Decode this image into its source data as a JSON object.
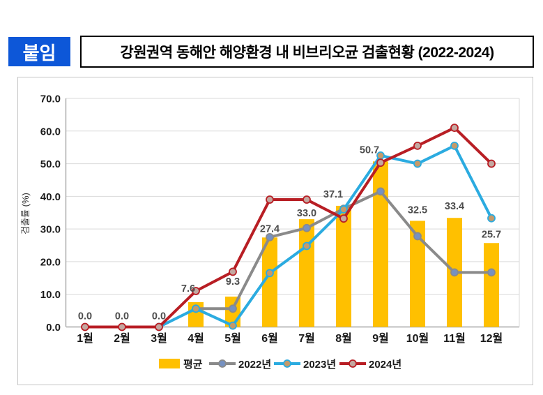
{
  "header": {
    "badge": "붙임",
    "title": "강원권역 동해안 해양환경 내 비브리오균 검출현황 (2022-2024)"
  },
  "chart_data": {
    "type": "combo-bar-line",
    "title": "강원권역 동해안 해양환경 내 비브리오균 검출현황 (2022-2024)",
    "xlabel": "",
    "ylabel": "검출률 (%)",
    "ylim": [
      0,
      70
    ],
    "ytick_labels": [
      "0.0",
      "10.0",
      "20.0",
      "30.0",
      "40.0",
      "50.0",
      "60.0",
      "70.0"
    ],
    "grid": true,
    "legend_position": "bottom",
    "categories": [
      "1월",
      "2월",
      "3월",
      "4월",
      "5월",
      "6월",
      "7월",
      "8월",
      "9월",
      "10월",
      "11월",
      "12월"
    ],
    "bar_series": {
      "name": "평균",
      "color": "#FFC000",
      "values": [
        0.0,
        0.0,
        0.0,
        7.6,
        9.3,
        27.4,
        33.0,
        37.1,
        50.7,
        32.5,
        33.4,
        25.7
      ],
      "labels": [
        "0.0",
        "0.0",
        "0.0",
        "7.6",
        "9.3",
        "27.4",
        "33.0",
        "37.1",
        "50.7",
        "32.5",
        "33.4",
        "25.7"
      ]
    },
    "line_series": [
      {
        "name": "2022년",
        "color": "#8A8A8A",
        "marker_fill": "#7691C1",
        "values": [
          null,
          null,
          null,
          5.6,
          5.6,
          27.5,
          30.3,
          36.2,
          41.5,
          27.8,
          16.7,
          16.7
        ]
      },
      {
        "name": "2023년",
        "color": "#2BABE0",
        "marker_fill": "#C59A6A",
        "values": [
          null,
          null,
          0.0,
          5.6,
          0.4,
          16.5,
          24.8,
          36.0,
          52.5,
          50.0,
          55.5,
          33.3
        ]
      },
      {
        "name": "2024년",
        "color": "#B81E24",
        "marker_fill": "#C4A8A1",
        "values": [
          0.0,
          0.0,
          0.0,
          11.0,
          16.9,
          39.0,
          39.0,
          33.2,
          50.3,
          55.5,
          61.0,
          50.0
        ]
      }
    ],
    "colors": {
      "grid": "#D9D9D9",
      "axis": "#A6A6A6",
      "data_label": "#4D4D4D",
      "tick_label": "#1A1A1A"
    }
  }
}
